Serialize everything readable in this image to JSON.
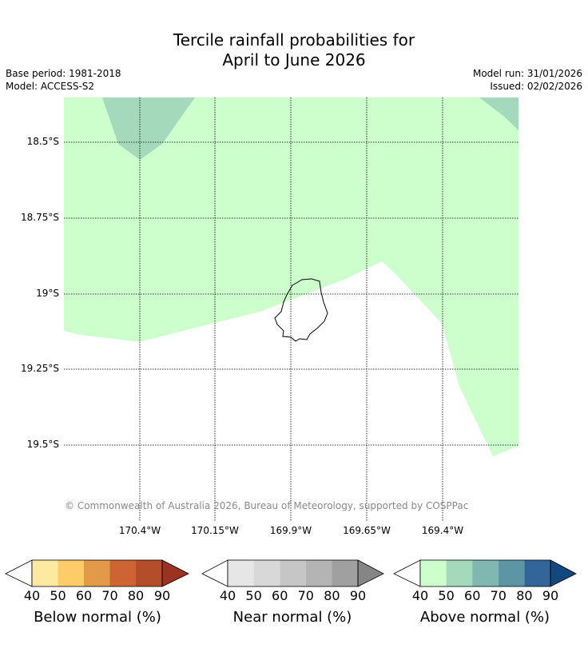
{
  "title": {
    "line1": "Tercile rainfall probabilities for",
    "line2": "April to June 2026"
  },
  "meta": {
    "base_period": "Base period: 1981-2018",
    "model": "Model: ACCESS-S2",
    "model_run": "Model run: 31/01/2026",
    "issued": "Issued: 02/02/2026"
  },
  "map": {
    "lat_labels": [
      "18.5°S",
      "18.75°S",
      "19°S",
      "19.25°S",
      "19.5°S"
    ],
    "lon_labels": [
      "170.4°W",
      "170.15°W",
      "169.9°W",
      "169.65°W",
      "169.4°W"
    ],
    "copyright": "© Commonwealth of Australia 2026, Bureau of Meteorology, supported by COSPPac",
    "region_categories": [
      "Above normal 50-60%",
      "Above normal 40-50%",
      "No dominant tercile"
    ]
  },
  "colorbars": [
    {
      "caption": "Below normal (%)",
      "ticks": [
        "40",
        "50",
        "60",
        "70",
        "80",
        "90"
      ],
      "colors": [
        "#ffffff",
        "#fdeaa0",
        "#fdcb68",
        "#e29948",
        "#ce6333",
        "#b44d2a",
        "#9a3322"
      ]
    },
    {
      "caption": "Near normal (%)",
      "ticks": [
        "40",
        "50",
        "60",
        "70",
        "80",
        "90"
      ],
      "colors": [
        "#ffffff",
        "#e6e6e6",
        "#d8d8d8",
        "#c6c6c6",
        "#b4b4b4",
        "#a0a0a0",
        "#858585"
      ]
    },
    {
      "caption": "Above normal (%)",
      "ticks": [
        "40",
        "50",
        "60",
        "70",
        "80",
        "90"
      ],
      "colors": [
        "#ffffff",
        "#ccffcc",
        "#a4d9bb",
        "#80b7b1",
        "#5c95a3",
        "#326599",
        "#13487e"
      ]
    }
  ]
}
